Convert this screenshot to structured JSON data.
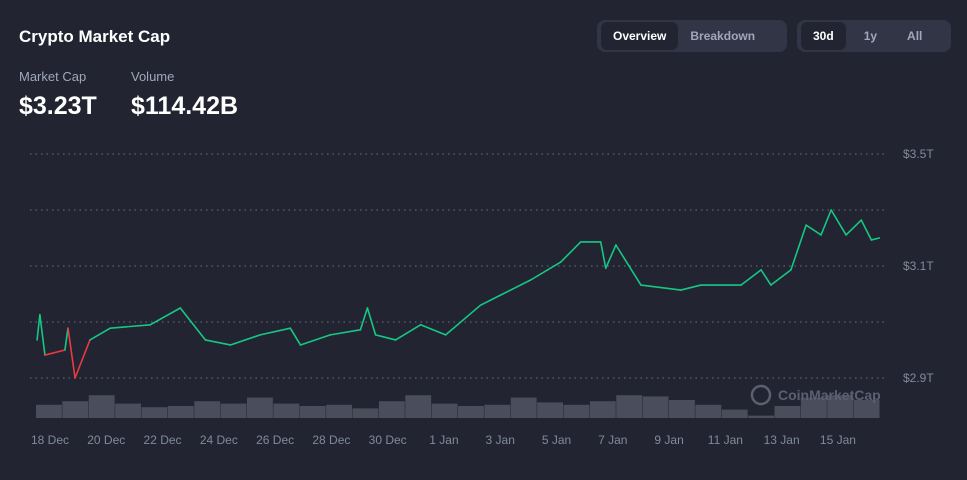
{
  "header": {
    "title": "Crypto Market Cap",
    "view_tabs": [
      "Overview",
      "Breakdown"
    ],
    "active_view": "Overview",
    "range_tabs": [
      "30d",
      "1y",
      "All"
    ],
    "active_range": "30d"
  },
  "stats": {
    "market_cap_label": "Market Cap",
    "market_cap_value": "$3.23T",
    "volume_label": "Volume",
    "volume_value": "$114.42B"
  },
  "watermark": "CoinMarketCap",
  "colors": {
    "up": "#16c784",
    "down": "#ea3943",
    "volume": "#4a4d5c"
  },
  "chart_data": {
    "type": "line",
    "title": "Crypto Market Cap",
    "x_ticks": [
      "18 Dec",
      "20 Dec",
      "22 Dec",
      "24 Dec",
      "26 Dec",
      "28 Dec",
      "30 Dec",
      "1 Jan",
      "3 Jan",
      "5 Jan",
      "7 Jan",
      "9 Jan",
      "11 Jan",
      "13 Jan",
      "15 Jan"
    ],
    "y_ticks": [
      "$3.5T",
      "$3.1T",
      "$2.9T"
    ],
    "y_tick_values": [
      3.5,
      3.1,
      2.9
    ],
    "grid": true,
    "x_unit": "days since 18 Dec",
    "series": [
      {
        "name": "Market Cap (T USD)",
        "baseline": 2.968,
        "x": [
          -0.46,
          -0.36,
          -0.18,
          0.53,
          0.64,
          0.89,
          1.42,
          2.14,
          3.56,
          4.63,
          5.52,
          6.41,
          7.47,
          8.54,
          8.9,
          9.96,
          11.03,
          11.28,
          11.57,
          12.28,
          13.17,
          14.06,
          15.3,
          16.01,
          17.08,
          18.15,
          18.86,
          19.57,
          19.75,
          20.11,
          21.0,
          22.42,
          23.13,
          24.56,
          25.27,
          25.62,
          26.33,
          26.87,
          27.4,
          27.76,
          28.29,
          28.83,
          29.19,
          29.47
        ],
        "y": [
          2.968,
          3.013,
          2.941,
          2.95,
          2.989,
          2.9,
          2.968,
          2.989,
          2.995,
          3.025,
          2.968,
          2.959,
          2.977,
          2.989,
          2.959,
          2.977,
          2.986,
          3.025,
          2.977,
          2.968,
          2.995,
          2.977,
          3.03,
          3.048,
          3.075,
          3.114,
          3.186,
          3.186,
          3.096,
          3.175,
          3.066,
          3.057,
          3.066,
          3.066,
          3.093,
          3.066,
          3.093,
          3.246,
          3.211,
          3.3,
          3.211,
          3.264,
          3.193,
          3.2
        ]
      }
    ],
    "volume_relative": [
      0.55,
      0.7,
      0.95,
      0.6,
      0.45,
      0.5,
      0.7,
      0.6,
      0.85,
      0.6,
      0.5,
      0.55,
      0.4,
      0.7,
      0.95,
      0.6,
      0.5,
      0.55,
      0.85,
      0.65,
      0.55,
      0.7,
      0.95,
      0.9,
      0.75,
      0.55,
      0.35,
      0.1,
      0.5,
      0.85,
      0.95,
      0.75
    ]
  }
}
